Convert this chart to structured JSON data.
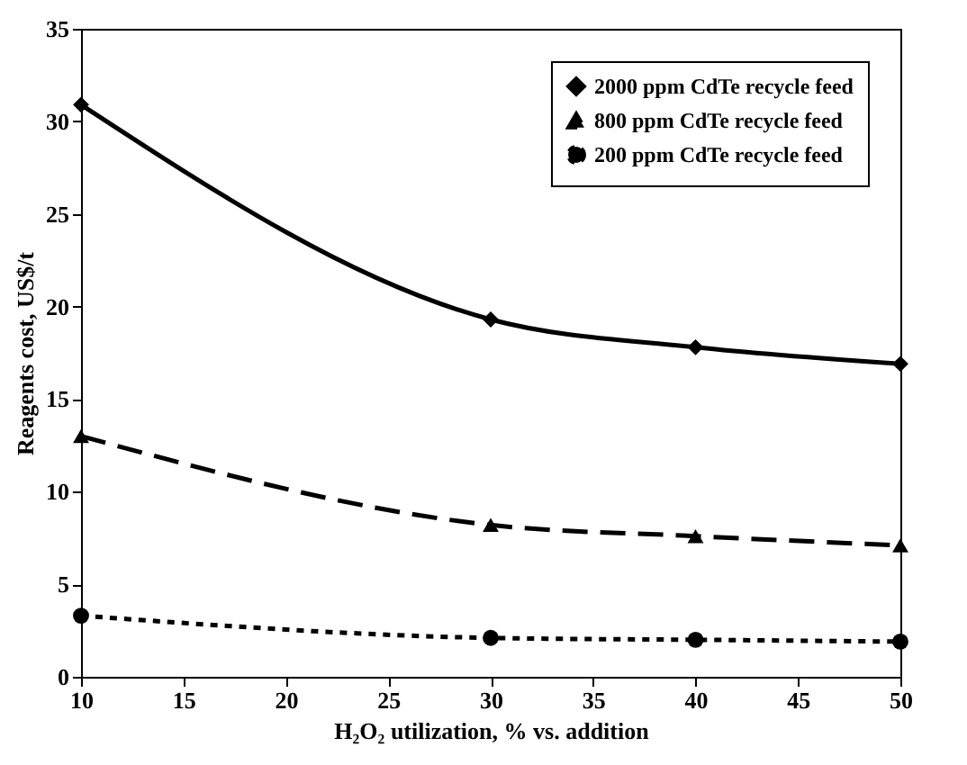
{
  "chart_data": {
    "type": "line",
    "xlabel": "H₂O₂ utilization, % vs. addition",
    "ylabel": "Reagents cost, US$/t",
    "x": [
      10,
      30,
      40,
      50
    ],
    "series": [
      {
        "name": "2000 ppm CdTe recycle feed",
        "color": "#000000",
        "marker": "diamond",
        "line_style": "solid",
        "values": [
          30.9,
          19.3,
          17.8,
          16.9
        ]
      },
      {
        "name": "800 ppm CdTe recycle feed",
        "color": "#000000",
        "marker": "triangle",
        "line_style": "dashed",
        "values": [
          13.0,
          8.2,
          7.6,
          7.1
        ]
      },
      {
        "name": "200 ppm CdTe recycle feed",
        "color": "#000000",
        "marker": "circle",
        "line_style": "dotted",
        "values": [
          3.3,
          2.1,
          2.0,
          1.9
        ]
      }
    ],
    "xlim": [
      10,
      50
    ],
    "xticks": [
      10,
      15,
      20,
      25,
      30,
      35,
      40,
      45,
      50
    ],
    "ylim": [
      0,
      35
    ],
    "yticks": [
      0,
      5,
      10,
      15,
      20,
      25,
      30,
      35
    ],
    "grid": false,
    "legend": "top right"
  }
}
